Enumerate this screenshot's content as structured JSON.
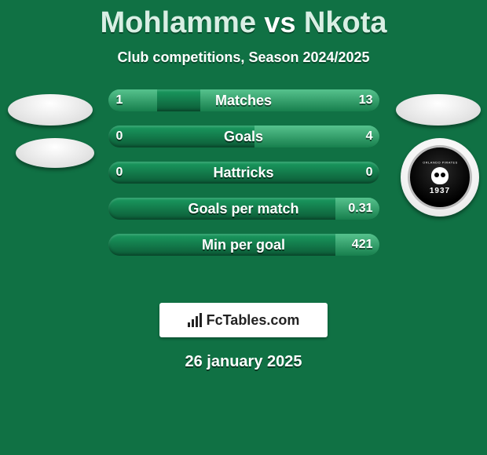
{
  "title": {
    "player1": "Mohlamme",
    "vs": "vs",
    "player2": "Nkota"
  },
  "subtitle": "Club competitions, Season 2024/2025",
  "bars": [
    {
      "label": "Matches",
      "left": "1",
      "right": "13",
      "left_pct": 18,
      "right_pct": 66
    },
    {
      "label": "Goals",
      "left": "0",
      "right": "4",
      "left_pct": 0,
      "right_pct": 46
    },
    {
      "label": "Hattricks",
      "left": "0",
      "right": "0",
      "left_pct": 0,
      "right_pct": 0
    },
    {
      "label": "Goals per match",
      "left": "",
      "right": "0.31",
      "left_pct": 0,
      "right_pct": 16
    },
    {
      "label": "Min per goal",
      "left": "",
      "right": "421",
      "left_pct": 0,
      "right_pct": 16
    }
  ],
  "bar_colors": {
    "track_top": "#1a9b60",
    "track_bottom": "#0c5a36",
    "fill_top": "#56c28d",
    "fill_bottom": "#177f4d"
  },
  "club2": {
    "name": "ORLANDO PIRATES",
    "year": "1937"
  },
  "footer": {
    "site": "FcTables.com"
  },
  "date": "26 january 2025",
  "background_color": "#107144"
}
